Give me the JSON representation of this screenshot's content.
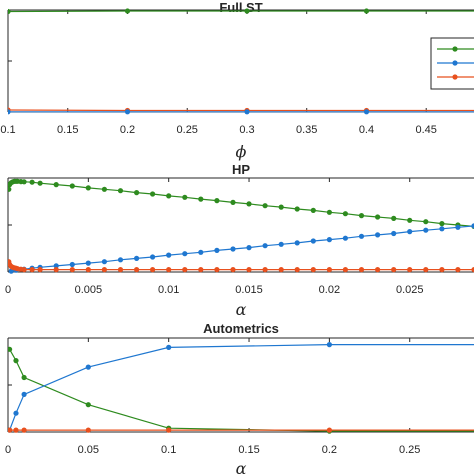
{
  "colors": {
    "green": "#2e8b1f",
    "blue": "#1f77d0",
    "orange": "#e8501e",
    "axis": "#262626",
    "legend_border": "#262626"
  },
  "chart_data": [
    {
      "type": "line",
      "title": "Full ST",
      "xlabel": "ϕ",
      "ylabel": "",
      "xlim": [
        0.1,
        0.49
      ],
      "ylim": [
        0,
        1
      ],
      "xticks": [
        0.1,
        0.15,
        0.2,
        0.25,
        0.3,
        0.35,
        0.4,
        0.45
      ],
      "xtick_labels": [
        "0.1",
        "0.15",
        "0.2",
        "0.25",
        "0.3",
        "0.35",
        "0.4",
        "0.45"
      ],
      "yticks": [
        0,
        0.5,
        1
      ],
      "grid": false,
      "legend": {
        "placement": "right",
        "entries": [
          "",
          "",
          ""
        ]
      },
      "series": [
        {
          "color": "#2e8b1f",
          "x": [
            0.1,
            0.2,
            0.3,
            0.4,
            0.5
          ],
          "y": [
            0.985,
            0.99,
            0.99,
            0.99,
            0.99
          ]
        },
        {
          "color": "#e8501e",
          "x": [
            0.1,
            0.2,
            0.3,
            0.4,
            0.5
          ],
          "y": [
            0.02,
            0.015,
            0.015,
            0.015,
            0.015
          ]
        },
        {
          "color": "#1f77d0",
          "x": [
            0.1,
            0.2,
            0.3,
            0.4,
            0.5
          ],
          "y": [
            0.002,
            0.002,
            0.002,
            0.002,
            0.002
          ]
        }
      ]
    },
    {
      "type": "line",
      "title": "HP",
      "xlabel": "α",
      "ylabel": "",
      "xlim": [
        0,
        0.029
      ],
      "ylim": [
        0,
        1
      ],
      "xticks": [
        0,
        0.005,
        0.01,
        0.015,
        0.02,
        0.025
      ],
      "xtick_labels": [
        "0",
        "0.005",
        "0.01",
        "0.015",
        "0.02",
        "0.025"
      ],
      "yticks": [
        0,
        0.5,
        1
      ],
      "grid": false,
      "series": [
        {
          "color": "#2e8b1f",
          "x": [
            5e-05,
            0.0001,
            0.0002,
            0.0003,
            0.0004,
            0.0005,
            0.0006,
            0.0008,
            0.001,
            0.0015,
            0.002,
            0.003,
            0.004,
            0.005,
            0.006,
            0.007,
            0.008,
            0.009,
            0.01,
            0.011,
            0.012,
            0.013,
            0.014,
            0.015,
            0.016,
            0.017,
            0.018,
            0.019,
            0.02,
            0.021,
            0.022,
            0.023,
            0.024,
            0.025,
            0.026,
            0.027,
            0.028,
            0.029
          ],
          "y": [
            0.88,
            0.93,
            0.95,
            0.96,
            0.965,
            0.965,
            0.965,
            0.962,
            0.96,
            0.955,
            0.945,
            0.93,
            0.915,
            0.895,
            0.88,
            0.865,
            0.845,
            0.83,
            0.81,
            0.795,
            0.775,
            0.76,
            0.74,
            0.725,
            0.705,
            0.69,
            0.67,
            0.655,
            0.635,
            0.62,
            0.6,
            0.585,
            0.57,
            0.55,
            0.535,
            0.515,
            0.5,
            0.485
          ]
        },
        {
          "color": "#1f77d0",
          "x": [
            0.0002,
            0.0005,
            0.001,
            0.0015,
            0.002,
            0.003,
            0.004,
            0.005,
            0.006,
            0.007,
            0.008,
            0.009,
            0.01,
            0.011,
            0.012,
            0.013,
            0.014,
            0.015,
            0.016,
            0.017,
            0.018,
            0.019,
            0.02,
            0.021,
            0.022,
            0.023,
            0.024,
            0.025,
            0.026,
            0.027,
            0.028,
            0.029
          ],
          "y": [
            0.01,
            0.02,
            0.03,
            0.04,
            0.05,
            0.065,
            0.08,
            0.095,
            0.11,
            0.13,
            0.145,
            0.16,
            0.18,
            0.195,
            0.21,
            0.23,
            0.245,
            0.26,
            0.28,
            0.295,
            0.31,
            0.33,
            0.345,
            0.36,
            0.38,
            0.395,
            0.41,
            0.43,
            0.445,
            0.46,
            0.475,
            0.49
          ]
        },
        {
          "color": "#e8501e",
          "x": [
            5e-05,
            0.0001,
            0.0002,
            0.0003,
            0.0004,
            0.0005,
            0.0006,
            0.0008,
            0.001,
            0.0015,
            0.002,
            0.003,
            0.004,
            0.005,
            0.006,
            0.007,
            0.008,
            0.009,
            0.01,
            0.011,
            0.012,
            0.013,
            0.014,
            0.015,
            0.016,
            0.017,
            0.018,
            0.019,
            0.02,
            0.021,
            0.022,
            0.023,
            0.024,
            0.025,
            0.026,
            0.027,
            0.028,
            0.029
          ],
          "y": [
            0.11,
            0.08,
            0.06,
            0.05,
            0.045,
            0.04,
            0.035,
            0.03,
            0.025,
            0.025,
            0.025,
            0.025,
            0.025,
            0.025,
            0.025,
            0.025,
            0.025,
            0.025,
            0.025,
            0.025,
            0.025,
            0.025,
            0.025,
            0.025,
            0.025,
            0.025,
            0.025,
            0.025,
            0.025,
            0.025,
            0.025,
            0.025,
            0.025,
            0.025,
            0.025,
            0.025,
            0.025,
            0.025
          ]
        }
      ]
    },
    {
      "type": "line",
      "title": "Autometrics",
      "xlabel": "α",
      "ylabel": "",
      "xlim": [
        0,
        0.29
      ],
      "ylim": [
        0,
        1
      ],
      "xticks": [
        0,
        0.05,
        0.1,
        0.15,
        0.2,
        0.25
      ],
      "xtick_labels": [
        "0",
        "0.05",
        "0.1",
        "0.15",
        "0.2",
        "0.25"
      ],
      "yticks": [
        0,
        0.5,
        1
      ],
      "grid": false,
      "series": [
        {
          "color": "#2e8b1f",
          "x": [
            0.001,
            0.005,
            0.01,
            0.05,
            0.1,
            0.2,
            0.3
          ],
          "y": [
            0.88,
            0.76,
            0.58,
            0.29,
            0.04,
            0.01,
            0.01
          ]
        },
        {
          "color": "#1f77d0",
          "x": [
            0.001,
            0.005,
            0.01,
            0.05,
            0.1,
            0.2,
            0.3
          ],
          "y": [
            0.02,
            0.2,
            0.4,
            0.69,
            0.9,
            0.93,
            0.93
          ]
        },
        {
          "color": "#e8501e",
          "x": [
            0.001,
            0.005,
            0.01,
            0.05,
            0.1,
            0.2,
            0.3
          ],
          "y": [
            0.02,
            0.02,
            0.02,
            0.02,
            0.02,
            0.02,
            0.02
          ]
        }
      ]
    }
  ]
}
